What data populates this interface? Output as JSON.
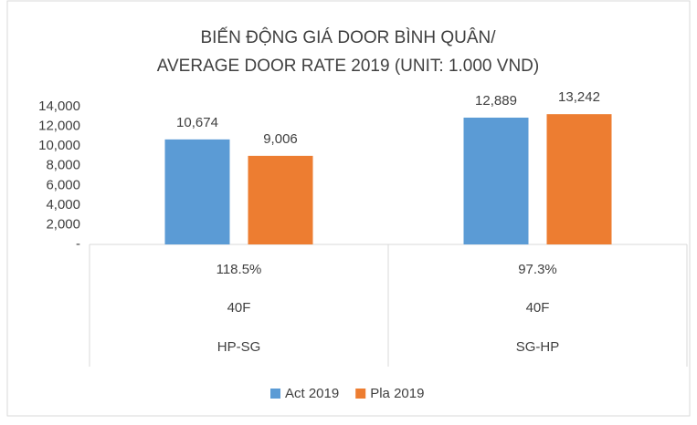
{
  "chart_data": {
    "type": "bar",
    "title": [
      "BIẾN ĐỘNG GIÁ DOOR BÌNH QUÂN/",
      "AVERAGE DOOR RATE 2019 (UNIT: 1.000 VND)"
    ],
    "categories": [
      "HP-SG",
      "SG-HP"
    ],
    "category_sublabels": [
      [
        "118.5%",
        "40F"
      ],
      [
        "97.3%",
        "40F"
      ]
    ],
    "series": [
      {
        "name": "Act 2019",
        "color": "#5b9bd5",
        "values": [
          10674,
          12889
        ],
        "value_labels": [
          "10,674",
          "12,889"
        ]
      },
      {
        "name": "Pla 2019",
        "color": "#ed7d31",
        "values": [
          9006,
          13242
        ],
        "value_labels": [
          "9,006",
          "13,242"
        ]
      }
    ],
    "ylim": [
      0,
      14000
    ],
    "yticks": [
      {
        "value": 0,
        "label": "-"
      },
      {
        "value": 2000,
        "label": "2,000"
      },
      {
        "value": 4000,
        "label": "4,000"
      },
      {
        "value": 6000,
        "label": "6,000"
      },
      {
        "value": 8000,
        "label": "8,000"
      },
      {
        "value": 10000,
        "label": "10,000"
      },
      {
        "value": 12000,
        "label": "12,000"
      },
      {
        "value": 14000,
        "label": "14,000"
      }
    ],
    "grid": false,
    "legend": "bottom"
  }
}
